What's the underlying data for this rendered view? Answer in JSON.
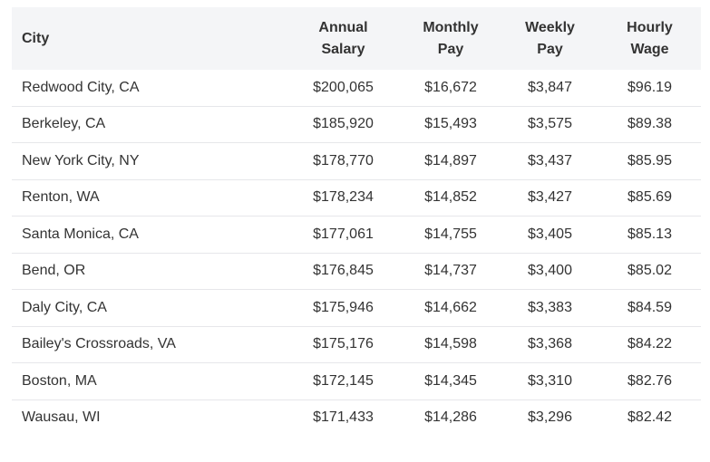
{
  "table": {
    "headers": {
      "city": "City",
      "annual": [
        "Annual",
        "Salary"
      ],
      "monthly": [
        "Monthly",
        "Pay"
      ],
      "weekly": [
        "Weekly",
        "Pay"
      ],
      "hourly": [
        "Hourly",
        "Wage"
      ]
    },
    "rows": [
      {
        "city": "Redwood City, CA",
        "annual": "$200,065",
        "monthly": "$16,672",
        "weekly": "$3,847",
        "hourly": "$96.19"
      },
      {
        "city": "Berkeley, CA",
        "annual": "$185,920",
        "monthly": "$15,493",
        "weekly": "$3,575",
        "hourly": "$89.38"
      },
      {
        "city": "New York City, NY",
        "annual": "$178,770",
        "monthly": "$14,897",
        "weekly": "$3,437",
        "hourly": "$85.95"
      },
      {
        "city": "Renton, WA",
        "annual": "$178,234",
        "monthly": "$14,852",
        "weekly": "$3,427",
        "hourly": "$85.69"
      },
      {
        "city": "Santa Monica, CA",
        "annual": "$177,061",
        "monthly": "$14,755",
        "weekly": "$3,405",
        "hourly": "$85.13"
      },
      {
        "city": "Bend, OR",
        "annual": "$176,845",
        "monthly": "$14,737",
        "weekly": "$3,400",
        "hourly": "$85.02"
      },
      {
        "city": "Daly City, CA",
        "annual": "$175,946",
        "monthly": "$14,662",
        "weekly": "$3,383",
        "hourly": "$84.59"
      },
      {
        "city": "Bailey's Crossroads, VA",
        "annual": "$175,176",
        "monthly": "$14,598",
        "weekly": "$3,368",
        "hourly": "$84.22"
      },
      {
        "city": "Boston, MA",
        "annual": "$172,145",
        "monthly": "$14,345",
        "weekly": "$3,310",
        "hourly": "$82.76"
      },
      {
        "city": "Wausau, WI",
        "annual": "$171,433",
        "monthly": "$14,286",
        "weekly": "$3,296",
        "hourly": "$82.42"
      }
    ]
  }
}
